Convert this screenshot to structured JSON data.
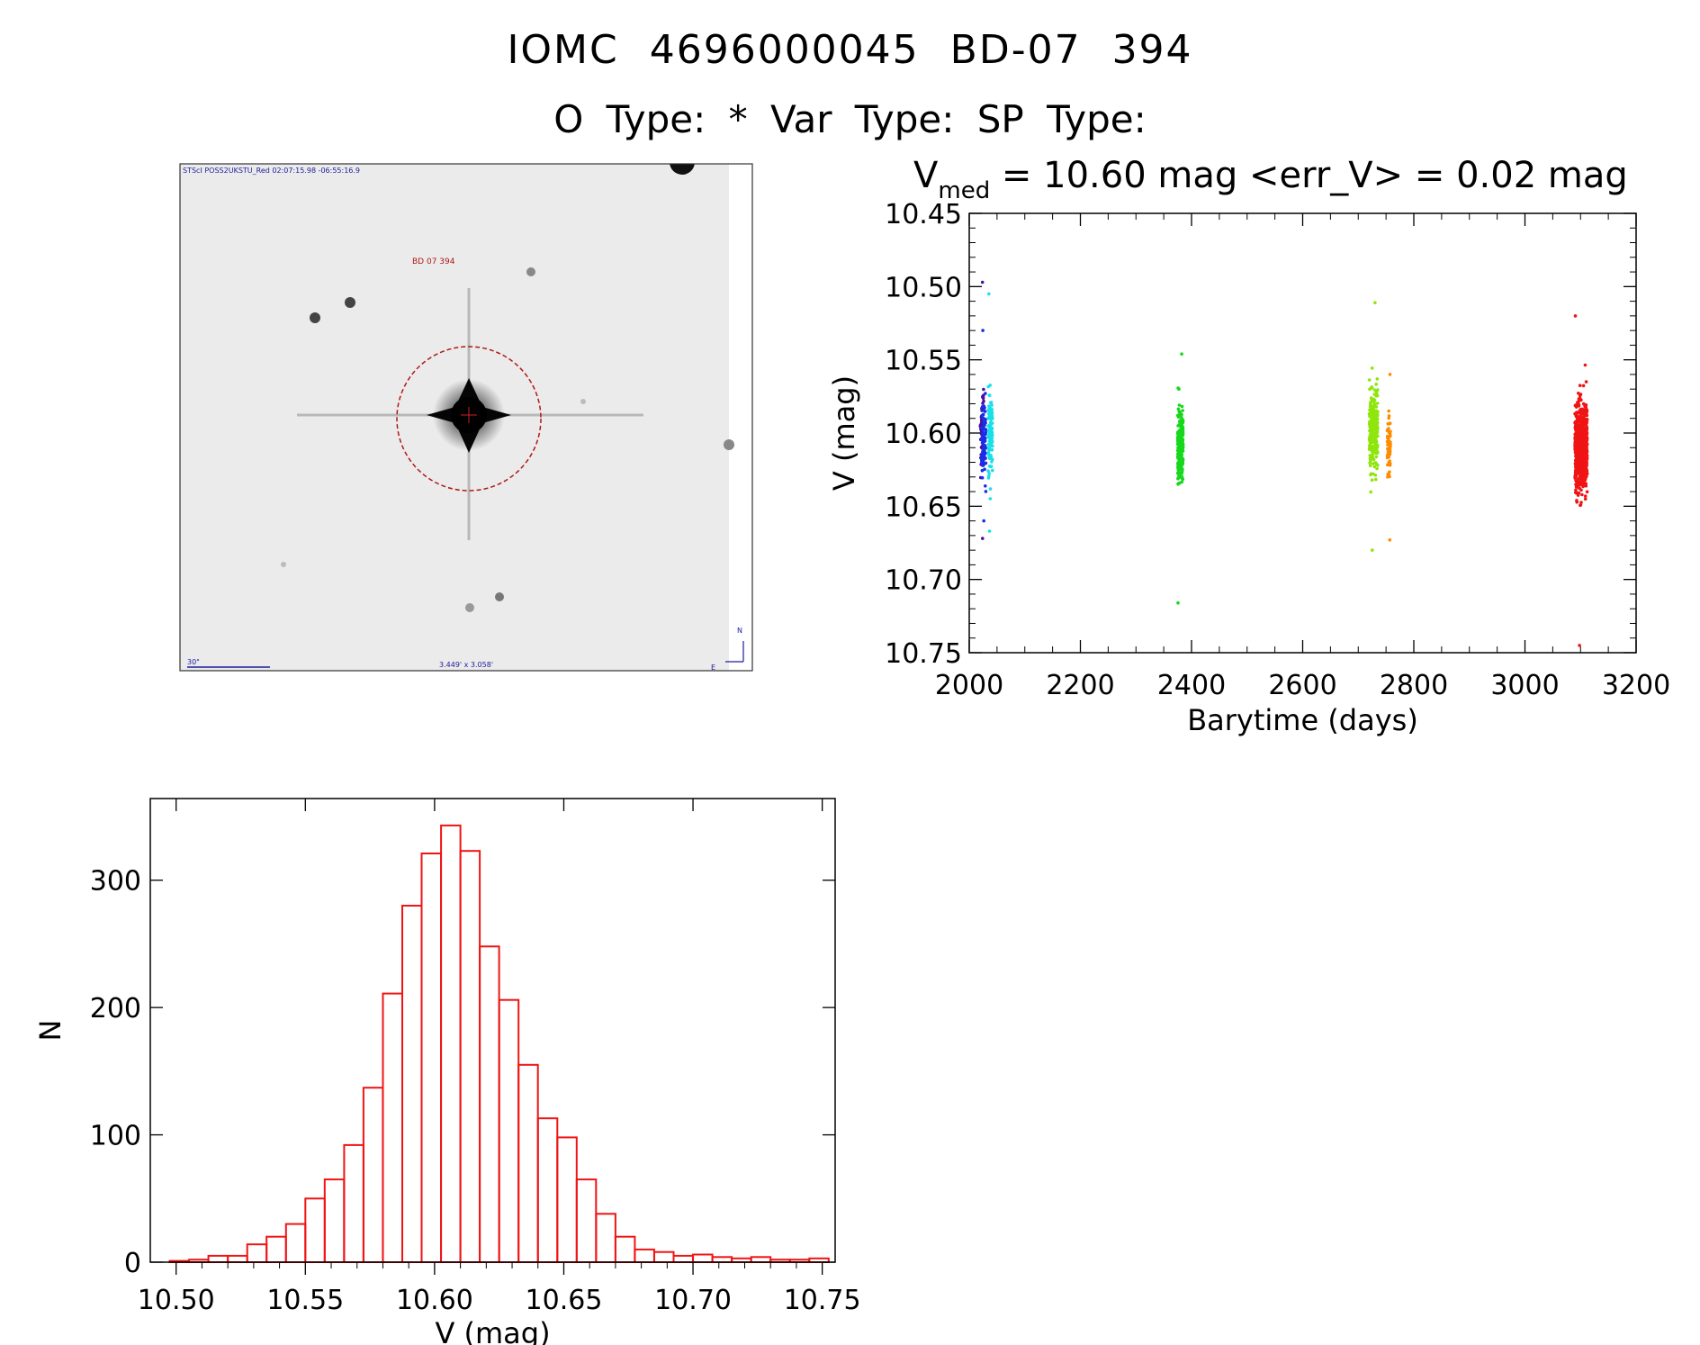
{
  "header": {
    "title": "IOMC 4696000045   BD-07   394",
    "subtitle": "O Type: *  Var Type:   SP Type:"
  },
  "finding_chart": {
    "top_label": "STScI POSS2UKSTU_Red 02:07:15.98 -06:55:16.9",
    "object_label": "BD 07 394",
    "scale_label": "30\"",
    "fov_label": "3.449' x 3.058'",
    "north_label": "N",
    "east_label": "E"
  },
  "chart_data": [
    {
      "type": "scatter",
      "title_prefix": "V",
      "title_subscript": "med",
      "title_rest": " = 10.60 mag <err_V> = 0.02 mag",
      "xlabel": "Barytime (days)",
      "ylabel": "V (mag)",
      "xlim": [
        2000,
        3200
      ],
      "ylim": [
        10.45,
        10.75
      ],
      "y_inverted": true,
      "xticks": [
        "2000",
        "2200",
        "2400",
        "2600",
        "2800",
        "3000",
        "3200"
      ],
      "yticks": [
        "10.45",
        "10.50",
        "10.55",
        "10.60",
        "10.65",
        "10.70",
        "10.75"
      ],
      "series": [
        {
          "name": "purple",
          "color": "#4b0fa0",
          "x_range": [
            2020,
            2026
          ],
          "center": 10.6,
          "spread": 0.025,
          "count": 60,
          "min": 10.497,
          "max": 10.672
        },
        {
          "name": "blue",
          "color": "#1a2ee6",
          "x_range": [
            2022,
            2030
          ],
          "center": 10.605,
          "spread": 0.022,
          "count": 90,
          "min": 10.53,
          "max": 10.66
        },
        {
          "name": "cyan",
          "color": "#18e0e8",
          "x_range": [
            2034,
            2042
          ],
          "center": 10.6,
          "spread": 0.025,
          "count": 110,
          "min": 10.505,
          "max": 10.667
        },
        {
          "name": "green",
          "color": "#16d81c",
          "x_range": [
            2375,
            2385
          ],
          "center": 10.61,
          "spread": 0.02,
          "count": 220,
          "min": 10.546,
          "max": 10.716
        },
        {
          "name": "lime",
          "color": "#8ee60c",
          "x_range": [
            2720,
            2735
          ],
          "center": 10.595,
          "spread": 0.023,
          "count": 300,
          "min": 10.511,
          "max": 10.68
        },
        {
          "name": "orange",
          "color": "#ff8c00",
          "x_range": [
            2752,
            2758
          ],
          "center": 10.61,
          "spread": 0.02,
          "count": 60,
          "min": 10.56,
          "max": 10.673
        },
        {
          "name": "red",
          "color": "#f01414",
          "x_range": [
            3090,
            3112
          ],
          "center": 10.61,
          "spread": 0.025,
          "count": 700,
          "min": 10.52,
          "max": 10.745
        }
      ]
    },
    {
      "type": "bar",
      "subtype": "histogram",
      "xlabel": "V (mag)",
      "ylabel": "N",
      "xlim": [
        10.49,
        10.755
      ],
      "ylim": [
        0,
        350
      ],
      "xticks": [
        "10.50",
        "10.55",
        "10.60",
        "10.65",
        "10.70",
        "10.75"
      ],
      "yticks": [
        "0",
        "100",
        "200",
        "300"
      ],
      "bar_color": "#f01414",
      "bin_start": 10.4975,
      "bin_width": 0.0075,
      "counts": [
        1,
        2,
        5,
        5,
        14,
        20,
        30,
        50,
        65,
        92,
        137,
        211,
        280,
        321,
        343,
        323,
        248,
        206,
        155,
        113,
        98,
        65,
        38,
        20,
        10,
        8,
        5,
        6,
        4,
        3,
        4,
        2,
        2,
        3
      ]
    }
  ]
}
